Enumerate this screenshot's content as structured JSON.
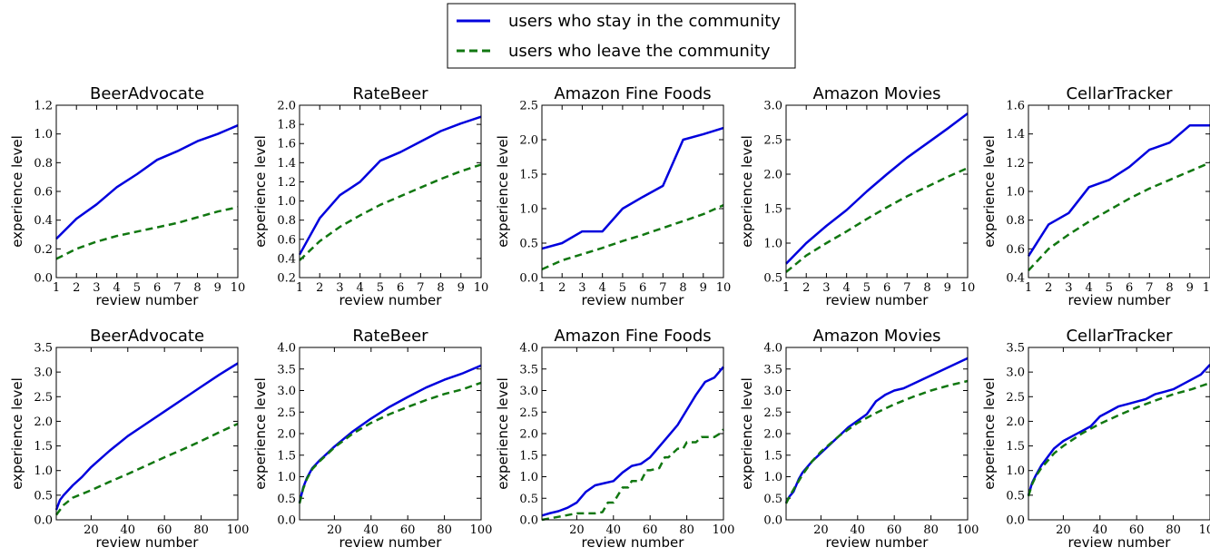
{
  "legend": {
    "stay_label": "users who stay in the community",
    "leave_label": "users who leave the community"
  },
  "colors": {
    "stay": "#0000dd",
    "leave": "#117711"
  },
  "chart_data": [
    {
      "type": "line",
      "title": "BeerAdvocate",
      "xlabel": "review number",
      "ylabel": "experience level",
      "xlim": [
        1,
        10
      ],
      "ylim": [
        0.0,
        1.2
      ],
      "xticks": [
        1,
        2,
        3,
        4,
        5,
        6,
        7,
        8,
        9,
        10
      ],
      "yticks": [
        0.0,
        0.2,
        0.4,
        0.6,
        0.8,
        1.0,
        1.2
      ],
      "series": [
        {
          "name": "users who stay in the community",
          "x": [
            1,
            2,
            3,
            4,
            5,
            6,
            7,
            8,
            9,
            10
          ],
          "y": [
            0.27,
            0.41,
            0.51,
            0.63,
            0.72,
            0.82,
            0.88,
            0.95,
            1.0,
            1.06
          ]
        },
        {
          "name": "users who leave the community",
          "x": [
            1,
            2,
            3,
            4,
            5,
            6,
            7,
            8,
            9,
            10
          ],
          "y": [
            0.13,
            0.2,
            0.25,
            0.29,
            0.32,
            0.35,
            0.38,
            0.42,
            0.46,
            0.49
          ]
        }
      ]
    },
    {
      "type": "line",
      "title": "RateBeer",
      "xlabel": "review number",
      "ylabel": "experience level",
      "xlim": [
        1,
        10
      ],
      "ylim": [
        0.2,
        2.0
      ],
      "xticks": [
        1,
        2,
        3,
        4,
        5,
        6,
        7,
        8,
        9,
        10
      ],
      "yticks": [
        0.2,
        0.4,
        0.6,
        0.8,
        1.0,
        1.2,
        1.4,
        1.6,
        1.8,
        2.0
      ],
      "series": [
        {
          "name": "users who stay in the community",
          "x": [
            1,
            2,
            3,
            4,
            5,
            6,
            7,
            8,
            9,
            10
          ],
          "y": [
            0.44,
            0.82,
            1.06,
            1.2,
            1.42,
            1.51,
            1.62,
            1.73,
            1.81,
            1.88
          ]
        },
        {
          "name": "users who leave the community",
          "x": [
            1,
            2,
            3,
            4,
            5,
            6,
            7,
            8,
            9,
            10
          ],
          "y": [
            0.38,
            0.58,
            0.73,
            0.85,
            0.96,
            1.05,
            1.14,
            1.23,
            1.31,
            1.38
          ]
        }
      ]
    },
    {
      "type": "line",
      "title": "Amazon Fine Foods",
      "xlabel": "review number",
      "ylabel": "experience level",
      "xlim": [
        1,
        10
      ],
      "ylim": [
        0.0,
        2.5
      ],
      "xticks": [
        1,
        2,
        3,
        4,
        5,
        6,
        7,
        8,
        9,
        10
      ],
      "yticks": [
        0.0,
        0.5,
        1.0,
        1.5,
        2.0,
        2.5
      ],
      "series": [
        {
          "name": "users who stay in the community",
          "x": [
            1,
            2,
            3,
            4,
            5,
            6,
            7,
            8,
            9,
            10
          ],
          "y": [
            0.42,
            0.5,
            0.67,
            0.67,
            1.0,
            1.17,
            1.33,
            2.0,
            2.08,
            2.17
          ]
        },
        {
          "name": "users who leave the community",
          "x": [
            1,
            2,
            3,
            4,
            5,
            6,
            7,
            8,
            9,
            10
          ],
          "y": [
            0.12,
            0.25,
            0.34,
            0.43,
            0.53,
            0.62,
            0.72,
            0.82,
            0.92,
            1.05
          ]
        }
      ]
    },
    {
      "type": "line",
      "title": "Amazon Movies",
      "xlabel": "review number",
      "ylabel": "experience level",
      "xlim": [
        1,
        10
      ],
      "ylim": [
        0.5,
        3.0
      ],
      "xticks": [
        1,
        2,
        3,
        4,
        5,
        6,
        7,
        8,
        9,
        10
      ],
      "yticks": [
        0.5,
        1.0,
        1.5,
        2.0,
        2.5,
        3.0
      ],
      "series": [
        {
          "name": "users who stay in the community",
          "x": [
            1,
            2,
            3,
            4,
            5,
            6,
            7,
            8,
            9,
            10
          ],
          "y": [
            0.7,
            1.0,
            1.25,
            1.48,
            1.75,
            2.0,
            2.24,
            2.45,
            2.66,
            2.88
          ]
        },
        {
          "name": "users who leave the community",
          "x": [
            1,
            2,
            3,
            4,
            5,
            6,
            7,
            8,
            9,
            10
          ],
          "y": [
            0.58,
            0.82,
            1.0,
            1.17,
            1.35,
            1.52,
            1.68,
            1.82,
            1.96,
            2.09
          ]
        }
      ]
    },
    {
      "type": "line",
      "title": "CellarTracker",
      "xlabel": "review number",
      "ylabel": "experience level",
      "xlim": [
        1,
        10
      ],
      "ylim": [
        0.4,
        1.6
      ],
      "xticks": [
        1,
        2,
        3,
        4,
        5,
        6,
        7,
        8,
        9,
        10
      ],
      "yticks": [
        0.4,
        0.6,
        0.8,
        1.0,
        1.2,
        1.4,
        1.6
      ],
      "series": [
        {
          "name": "users who stay in the community",
          "x": [
            1,
            2,
            3,
            4,
            5,
            6,
            7,
            8,
            9,
            10
          ],
          "y": [
            0.55,
            0.77,
            0.85,
            1.03,
            1.08,
            1.17,
            1.29,
            1.34,
            1.46,
            1.46
          ]
        },
        {
          "name": "users who leave the community",
          "x": [
            1,
            2,
            3,
            4,
            5,
            6,
            7,
            8,
            9,
            10
          ],
          "y": [
            0.45,
            0.6,
            0.7,
            0.79,
            0.87,
            0.95,
            1.02,
            1.08,
            1.14,
            1.2
          ]
        }
      ]
    },
    {
      "type": "line",
      "title": "BeerAdvocate",
      "xlabel": "review number",
      "ylabel": "experience level",
      "xlim": [
        1,
        100
      ],
      "ylim": [
        0.0,
        3.5
      ],
      "xticks": [
        20,
        40,
        60,
        80,
        100
      ],
      "yticks": [
        0.0,
        0.5,
        1.0,
        1.5,
        2.0,
        2.5,
        3.0,
        3.5
      ],
      "series": [
        {
          "name": "users who stay in the community",
          "x": [
            1,
            3,
            5,
            10,
            15,
            20,
            30,
            40,
            50,
            60,
            70,
            80,
            90,
            100
          ],
          "y": [
            0.2,
            0.4,
            0.5,
            0.7,
            0.87,
            1.07,
            1.4,
            1.7,
            1.95,
            2.2,
            2.45,
            2.7,
            2.95,
            3.18
          ]
        },
        {
          "name": "users who leave the community",
          "x": [
            1,
            5,
            10,
            20,
            30,
            40,
            50,
            60,
            70,
            80,
            90,
            100
          ],
          "y": [
            0.1,
            0.3,
            0.45,
            0.6,
            0.77,
            0.93,
            1.1,
            1.27,
            1.43,
            1.6,
            1.78,
            1.95
          ]
        }
      ]
    },
    {
      "type": "line",
      "title": "RateBeer",
      "xlabel": "review number",
      "ylabel": "experience level",
      "xlim": [
        1,
        100
      ],
      "ylim": [
        0.0,
        4.0
      ],
      "xticks": [
        20,
        40,
        60,
        80,
        100
      ],
      "yticks": [
        0.0,
        0.5,
        1.0,
        1.5,
        2.0,
        2.5,
        3.0,
        3.5,
        4.0
      ],
      "series": [
        {
          "name": "users who stay in the community",
          "x": [
            1,
            3,
            5,
            8,
            12,
            15,
            20,
            30,
            40,
            50,
            60,
            70,
            80,
            90,
            100
          ],
          "y": [
            0.4,
            0.75,
            0.97,
            1.2,
            1.38,
            1.5,
            1.7,
            2.05,
            2.35,
            2.62,
            2.85,
            3.07,
            3.25,
            3.4,
            3.58
          ]
        },
        {
          "name": "users who leave the community",
          "x": [
            1,
            3,
            5,
            8,
            12,
            15,
            20,
            30,
            40,
            50,
            60,
            70,
            80,
            90,
            100
          ],
          "y": [
            0.38,
            0.72,
            0.95,
            1.18,
            1.36,
            1.48,
            1.68,
            2.0,
            2.25,
            2.45,
            2.62,
            2.78,
            2.92,
            3.03,
            3.18
          ]
        }
      ]
    },
    {
      "type": "line",
      "title": "Amazon Fine Foods",
      "xlabel": "review number",
      "ylabel": "experience level",
      "xlim": [
        1,
        100
      ],
      "ylim": [
        0.0,
        4.0
      ],
      "xticks": [
        20,
        40,
        60,
        80,
        100
      ],
      "yticks": [
        0.0,
        0.5,
        1.0,
        1.5,
        2.0,
        2.5,
        3.0,
        3.5,
        4.0
      ],
      "series": [
        {
          "name": "users who stay in the community",
          "x": [
            1,
            5,
            10,
            15,
            20,
            25,
            30,
            35,
            40,
            45,
            50,
            55,
            60,
            65,
            70,
            75,
            80,
            85,
            90,
            95,
            100
          ],
          "y": [
            0.1,
            0.15,
            0.2,
            0.28,
            0.4,
            0.65,
            0.8,
            0.85,
            0.9,
            1.1,
            1.25,
            1.3,
            1.45,
            1.7,
            1.95,
            2.2,
            2.55,
            2.9,
            3.2,
            3.3,
            3.55
          ]
        },
        {
          "name": "users who leave the community",
          "x": [
            1,
            10,
            20,
            30,
            34,
            37,
            40,
            45,
            48,
            50,
            55,
            58,
            60,
            65,
            68,
            70,
            75,
            78,
            80,
            85,
            88,
            90,
            95,
            98,
            100
          ],
          "y": [
            0.0,
            0.07,
            0.15,
            0.15,
            0.18,
            0.4,
            0.4,
            0.75,
            0.75,
            0.9,
            0.9,
            1.15,
            1.15,
            1.2,
            1.45,
            1.45,
            1.65,
            1.65,
            1.8,
            1.8,
            1.92,
            1.92,
            1.92,
            2.0,
            2.1
          ]
        }
      ]
    },
    {
      "type": "line",
      "title": "Amazon Movies",
      "xlabel": "review number",
      "ylabel": "experience level",
      "xlim": [
        1,
        100
      ],
      "ylim": [
        0.0,
        4.0
      ],
      "xticks": [
        20,
        40,
        60,
        80,
        100
      ],
      "yticks": [
        0.0,
        0.5,
        1.0,
        1.5,
        2.0,
        2.5,
        3.0,
        3.5,
        4.0
      ],
      "series": [
        {
          "name": "users who stay in the community",
          "x": [
            1,
            3,
            5,
            8,
            10,
            15,
            20,
            25,
            30,
            35,
            40,
            45,
            50,
            55,
            60,
            65,
            70,
            75,
            80,
            85,
            90,
            95,
            100
          ],
          "y": [
            0.4,
            0.55,
            0.65,
            0.95,
            1.1,
            1.35,
            1.55,
            1.75,
            1.95,
            2.15,
            2.3,
            2.45,
            2.75,
            2.9,
            3.0,
            3.05,
            3.15,
            3.25,
            3.35,
            3.45,
            3.55,
            3.65,
            3.75
          ]
        },
        {
          "name": "users who leave the community",
          "x": [
            1,
            3,
            5,
            10,
            15,
            20,
            30,
            40,
            50,
            60,
            70,
            80,
            90,
            100
          ],
          "y": [
            0.38,
            0.55,
            0.7,
            1.05,
            1.35,
            1.58,
            1.95,
            2.25,
            2.48,
            2.68,
            2.85,
            3.0,
            3.12,
            3.22
          ]
        }
      ]
    },
    {
      "type": "line",
      "title": "CellarTracker",
      "xlabel": "review number",
      "ylabel": "experience level",
      "xlim": [
        1,
        100
      ],
      "ylim": [
        0.0,
        3.5
      ],
      "xticks": [
        20,
        40,
        60,
        80,
        100
      ],
      "yticks": [
        0.0,
        0.5,
        1.0,
        1.5,
        2.0,
        2.5,
        3.0,
        3.5
      ],
      "series": [
        {
          "name": "users who stay in the community",
          "x": [
            1,
            3,
            5,
            8,
            12,
            15,
            20,
            25,
            30,
            35,
            40,
            45,
            50,
            55,
            60,
            65,
            70,
            75,
            80,
            85,
            90,
            95,
            100
          ],
          "y": [
            0.5,
            0.75,
            0.9,
            1.1,
            1.3,
            1.45,
            1.6,
            1.7,
            1.8,
            1.9,
            2.1,
            2.2,
            2.3,
            2.35,
            2.4,
            2.45,
            2.55,
            2.6,
            2.65,
            2.75,
            2.85,
            2.95,
            3.15
          ]
        },
        {
          "name": "users who leave the community",
          "x": [
            1,
            3,
            5,
            8,
            12,
            15,
            20,
            30,
            40,
            50,
            60,
            70,
            80,
            90,
            100
          ],
          "y": [
            0.48,
            0.72,
            0.88,
            1.05,
            1.22,
            1.35,
            1.5,
            1.75,
            1.95,
            2.12,
            2.28,
            2.42,
            2.55,
            2.65,
            2.78
          ]
        }
      ]
    }
  ]
}
